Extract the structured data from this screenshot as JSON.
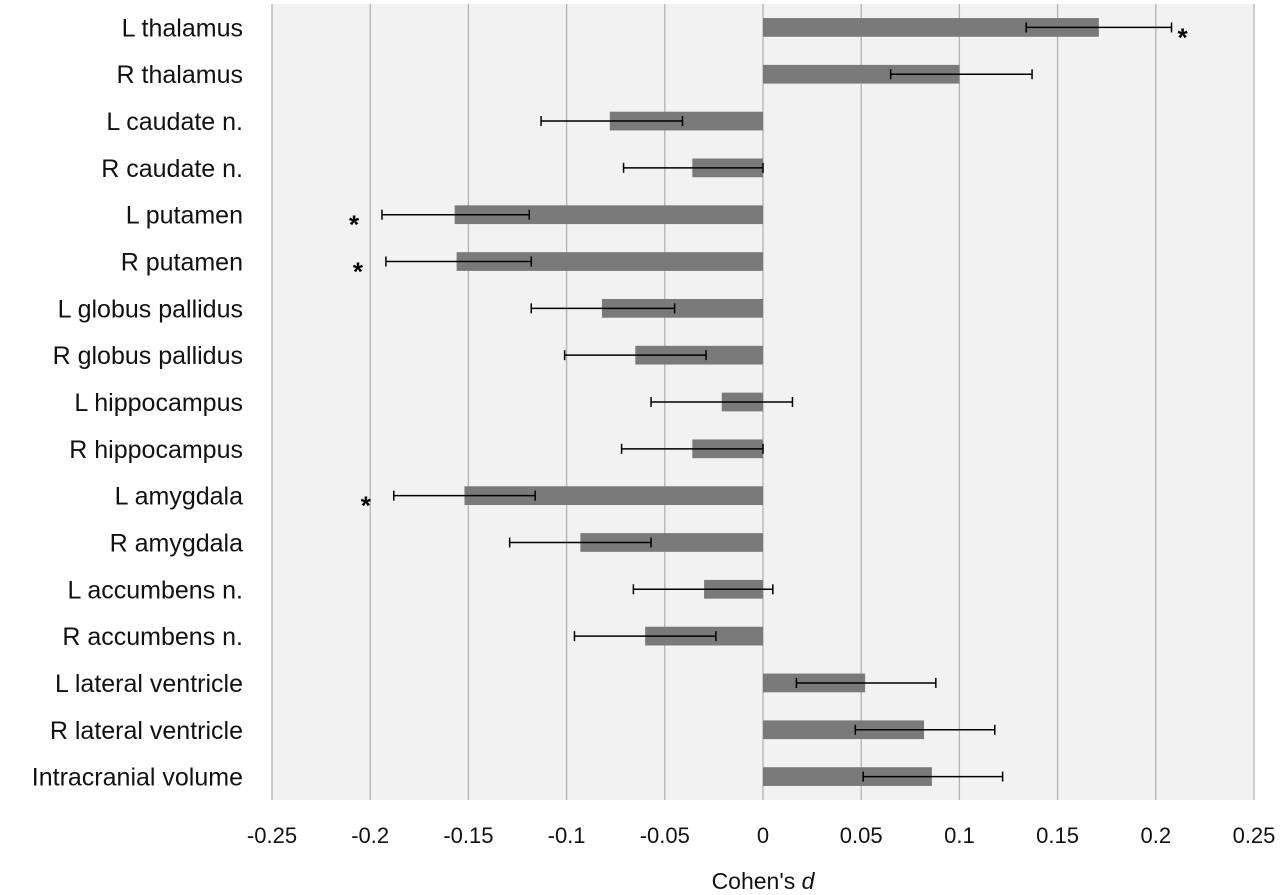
{
  "chart_data": {
    "type": "bar",
    "orientation": "horizontal",
    "categories": [
      "L thalamus",
      "R thalamus",
      "L caudate n.",
      "R caudate n.",
      "L putamen",
      "R putamen",
      "L globus pallidus",
      "R globus pallidus",
      "L hippocampus",
      "R hippocampus",
      "L amygdala",
      "R amygdala",
      "L accumbens n.",
      "R accumbens n.",
      "L lateral ventricle",
      "R lateral ventricle",
      "Intracranial volume"
    ],
    "values": [
      0.171,
      0.1,
      -0.078,
      -0.036,
      -0.157,
      -0.156,
      -0.082,
      -0.065,
      -0.021,
      -0.036,
      -0.152,
      -0.093,
      -0.03,
      -0.06,
      0.052,
      0.082,
      0.086
    ],
    "error_low": [
      0.134,
      0.065,
      -0.113,
      -0.071,
      -0.194,
      -0.192,
      -0.118,
      -0.101,
      -0.057,
      -0.072,
      -0.188,
      -0.129,
      -0.066,
      -0.096,
      0.017,
      0.047,
      0.051
    ],
    "error_high": [
      0.208,
      0.137,
      -0.041,
      0.0,
      -0.119,
      -0.118,
      -0.045,
      -0.029,
      0.015,
      0.0,
      -0.116,
      -0.057,
      0.005,
      -0.024,
      0.088,
      0.118,
      0.122
    ],
    "significant": [
      true,
      false,
      false,
      false,
      true,
      true,
      false,
      false,
      false,
      false,
      true,
      false,
      false,
      false,
      false,
      false,
      false
    ],
    "star_symbol": "*",
    "xlabel_prefix": "Cohen's ",
    "xlabel_italic": "d",
    "xlim": [
      -0.25,
      0.25
    ],
    "xticks": [
      -0.25,
      -0.2,
      -0.15,
      -0.1,
      -0.05,
      0,
      0.05,
      0.1,
      0.15,
      0.2,
      0.25
    ],
    "xtick_labels": [
      "-0.25",
      "-0.2",
      "-0.15",
      "-0.1",
      "-0.05",
      "0",
      "0.05",
      "0.1",
      "0.15",
      "0.2",
      "0.25"
    ],
    "grid": "vertical",
    "colors": {
      "bar": "#7a7a7a",
      "plot_background": "#f2f2f2",
      "gridline": "#b3b3b3",
      "error_bar": "#000000"
    }
  }
}
